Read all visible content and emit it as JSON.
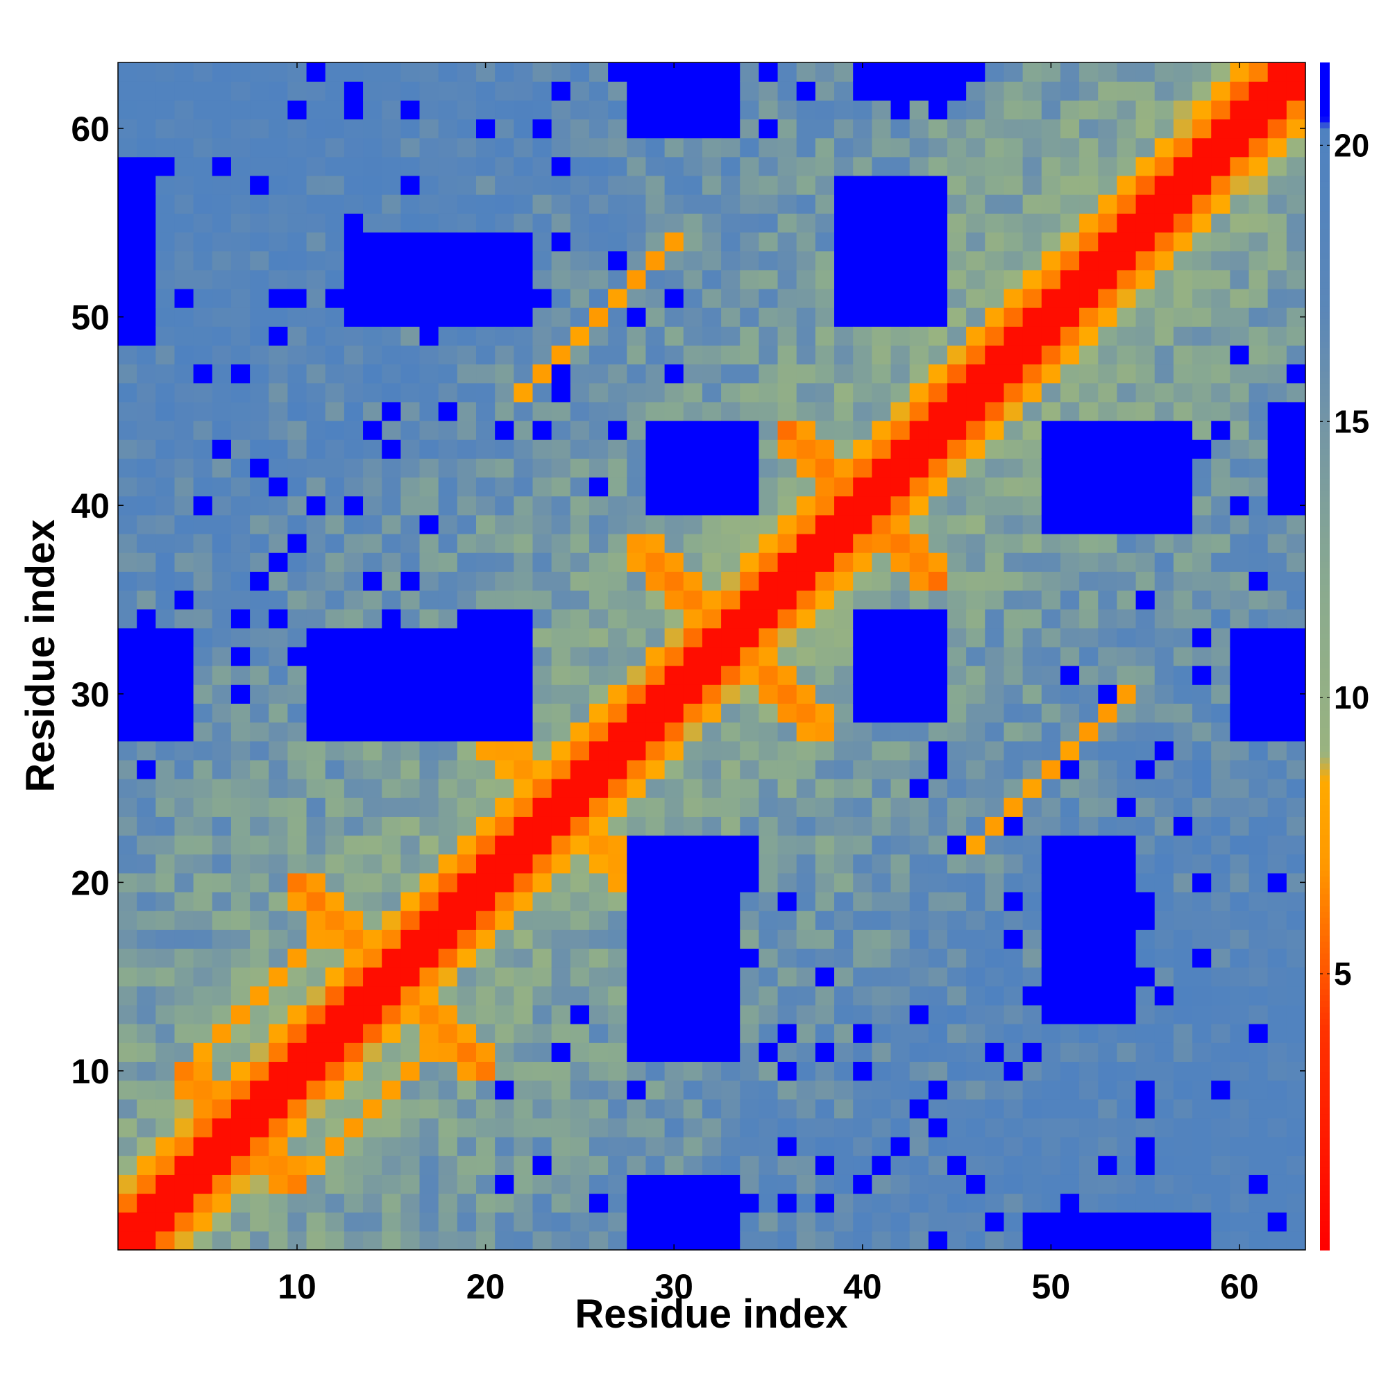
{
  "chart_data": {
    "type": "heatmap",
    "title": "",
    "xlabel": "Residue index",
    "ylabel": "Residue index",
    "n_residues": 63,
    "x_range": [
      1,
      63
    ],
    "y_range": [
      1,
      63
    ],
    "x_ticks": [
      10,
      20,
      30,
      40,
      50,
      60
    ],
    "y_ticks": [
      10,
      20,
      30,
      40,
      50,
      60
    ],
    "x_tick_labels": [
      "10",
      "20",
      "30",
      "40",
      "50",
      "60"
    ],
    "y_tick_labels": [
      "10",
      "20",
      "30",
      "40",
      "50",
      "60"
    ],
    "value_note": "symmetric residue-residue distance map; diagonal and |i-j|=1 are shortest",
    "colorbar": {
      "range": [
        0,
        21.5
      ],
      "ticks": [
        5,
        10,
        15,
        20
      ],
      "tick_labels": [
        "5",
        "10",
        "15",
        "20"
      ],
      "stops": [
        {
          "value": 0,
          "color": "#ff0000"
        },
        {
          "value": 4,
          "color": "#ff3300"
        },
        {
          "value": 5.5,
          "color": "#ff6600"
        },
        {
          "value": 7,
          "color": "#ff9900"
        },
        {
          "value": 8.5,
          "color": "#ffaa00"
        },
        {
          "value": 9,
          "color": "#99b380"
        },
        {
          "value": 12,
          "color": "#8aaa8f"
        },
        {
          "value": 15,
          "color": "#7395a6"
        },
        {
          "value": 17,
          "color": "#5b87b8"
        },
        {
          "value": 20.3,
          "color": "#4f82c0"
        },
        {
          "value": 20.5,
          "color": "#0000ff"
        },
        {
          "value": 21.5,
          "color": "#0000ff"
        }
      ]
    },
    "features": {
      "near_diagonal_bands": [
        {
          "offset": 2,
          "value": 6.0
        },
        {
          "offset": 3,
          "value": 8.3
        }
      ],
      "antiparallel_contacts": [
        {
          "sum": 66,
          "from": 28,
          "to": 38,
          "value": 6.5
        },
        {
          "sum": 80,
          "from": 36,
          "to": 44,
          "value": 6.0
        },
        {
          "sum": 48,
          "from": 20,
          "to": 28,
          "value": 7.0
        },
        {
          "sum": 14,
          "from": 4,
          "to": 10,
          "value": 6.5
        },
        {
          "sum": 30,
          "from": 10,
          "to": 15,
          "value": 6.5
        }
      ],
      "parallel_contacts": [
        {
          "offset": 24,
          "from": 22,
          "to": 30,
          "value": 7.5
        },
        {
          "offset": 6,
          "from": 5,
          "to": 12,
          "value": 7.5
        }
      ],
      "far_blocks": [
        {
          "i": [
            1,
            4
          ],
          "j": [
            28,
            33
          ]
        },
        {
          "i": [
            28,
            33
          ],
          "j": [
            1,
            4
          ]
        },
        {
          "i": [
            11,
            17
          ],
          "j": [
            28,
            33
          ]
        },
        {
          "i": [
            28,
            33
          ],
          "j": [
            11,
            17
          ]
        },
        {
          "i": [
            18,
            22
          ],
          "j": [
            28,
            33
          ]
        },
        {
          "i": [
            28,
            33
          ],
          "j": [
            18,
            22
          ]
        },
        {
          "i": [
            29,
            34
          ],
          "j": [
            40,
            44
          ]
        },
        {
          "i": [
            40,
            44
          ],
          "j": [
            29,
            34
          ]
        },
        {
          "i": [
            40,
            44
          ],
          "j": [
            50,
            54
          ]
        },
        {
          "i": [
            50,
            54
          ],
          "j": [
            40,
            44
          ]
        },
        {
          "i": [
            13,
            22
          ],
          "j": [
            50,
            54
          ]
        },
        {
          "i": [
            50,
            54
          ],
          "j": [
            13,
            22
          ]
        },
        {
          "i": [
            28,
            31
          ],
          "j": [
            1,
            2
          ]
        },
        {
          "i": [
            1,
            2
          ],
          "j": [
            28,
            31
          ]
        },
        {
          "i": [
            49,
            58
          ],
          "j": [
            1,
            2
          ]
        },
        {
          "i": [
            1,
            2
          ],
          "j": [
            49,
            58
          ]
        },
        {
          "i": [
            39,
            44
          ],
          "j": [
            50,
            57
          ]
        },
        {
          "i": [
            50,
            57
          ],
          "j": [
            39,
            44
          ]
        },
        {
          "i": [
            20,
            22
          ],
          "j": [
            30,
            34
          ]
        },
        {
          "i": [
            30,
            34
          ],
          "j": [
            20,
            22
          ]
        },
        {
          "i": [
            60,
            63
          ],
          "j": [
            28,
            33
          ]
        },
        {
          "i": [
            28,
            33
          ],
          "j": [
            60,
            63
          ]
        },
        {
          "i": [
            62,
            63
          ],
          "j": [
            40,
            45
          ]
        },
        {
          "i": [
            40,
            45
          ],
          "j": [
            62,
            63
          ]
        }
      ]
    }
  }
}
